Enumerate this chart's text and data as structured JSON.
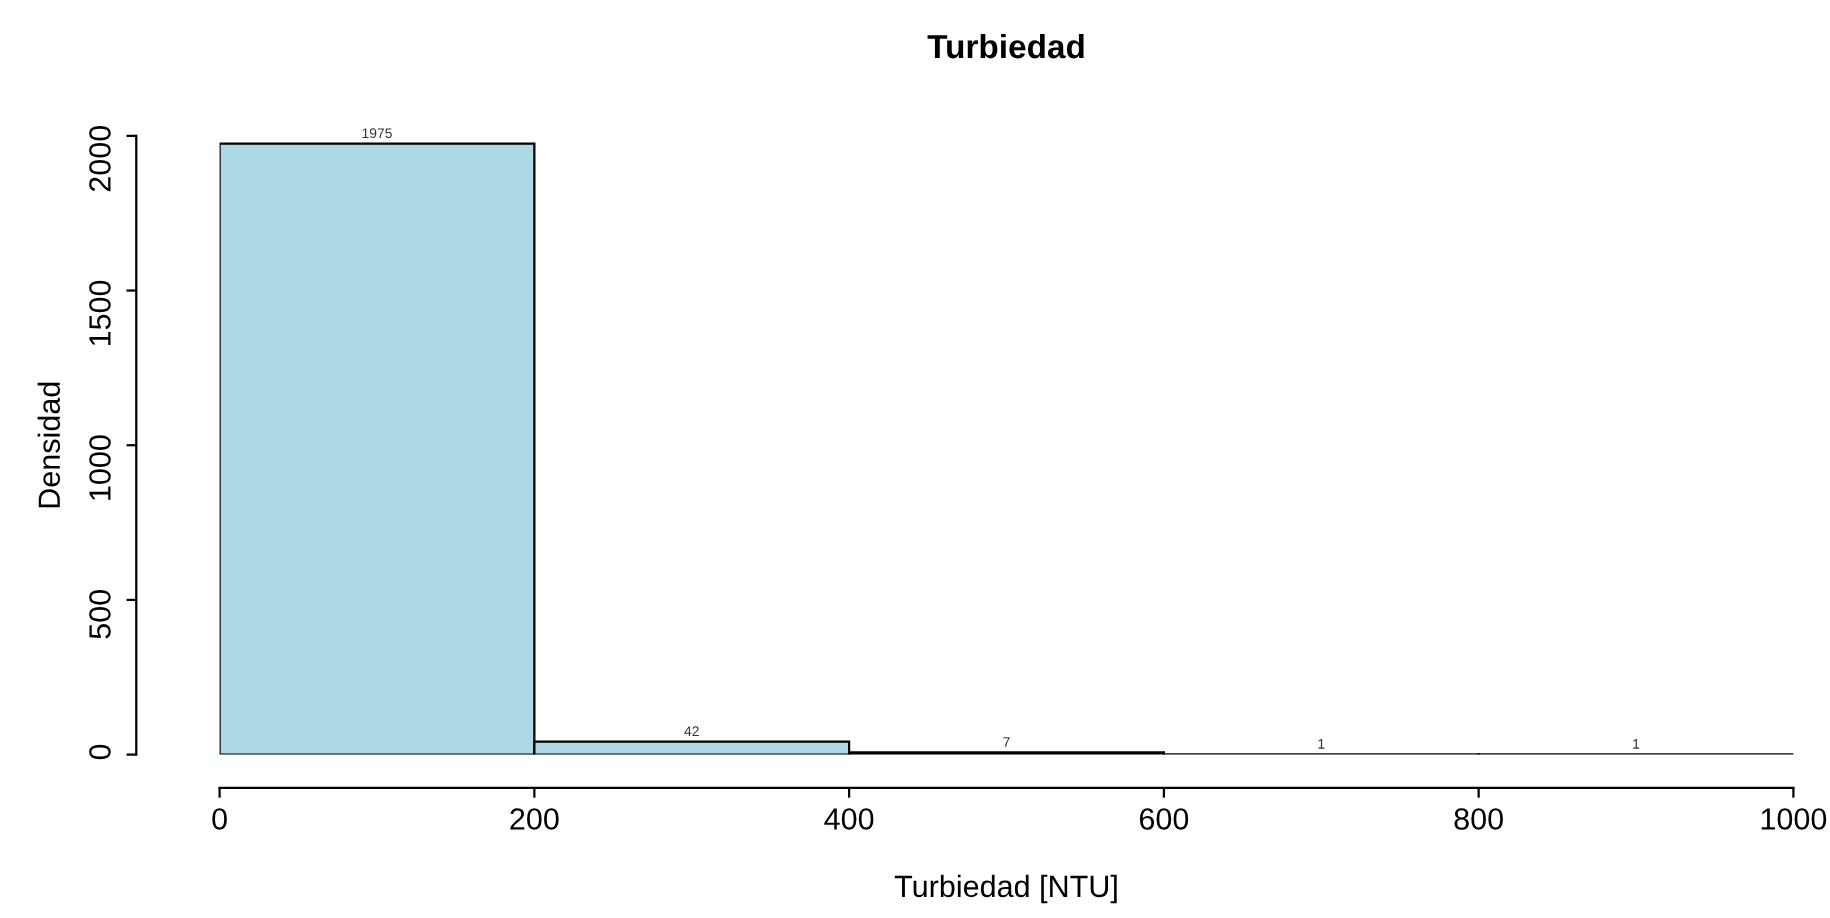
{
  "chart_data": {
    "type": "histogram",
    "title": "Turbiedad",
    "xlabel": "Turbiedad [NTU]",
    "ylabel": "Densidad",
    "bins": [
      0,
      200,
      400,
      600,
      800,
      1000
    ],
    "values": [
      1975,
      42,
      7,
      1,
      1
    ],
    "color": "#add8e6",
    "data_labels": true,
    "xlim": [
      0,
      1000
    ],
    "ylim": [
      0,
      2000
    ],
    "xticks": [
      0,
      200,
      400,
      600,
      800,
      1000
    ],
    "yticks": [
      0,
      500,
      1000,
      1500,
      2000
    ],
    "grid": false,
    "legend": false
  }
}
